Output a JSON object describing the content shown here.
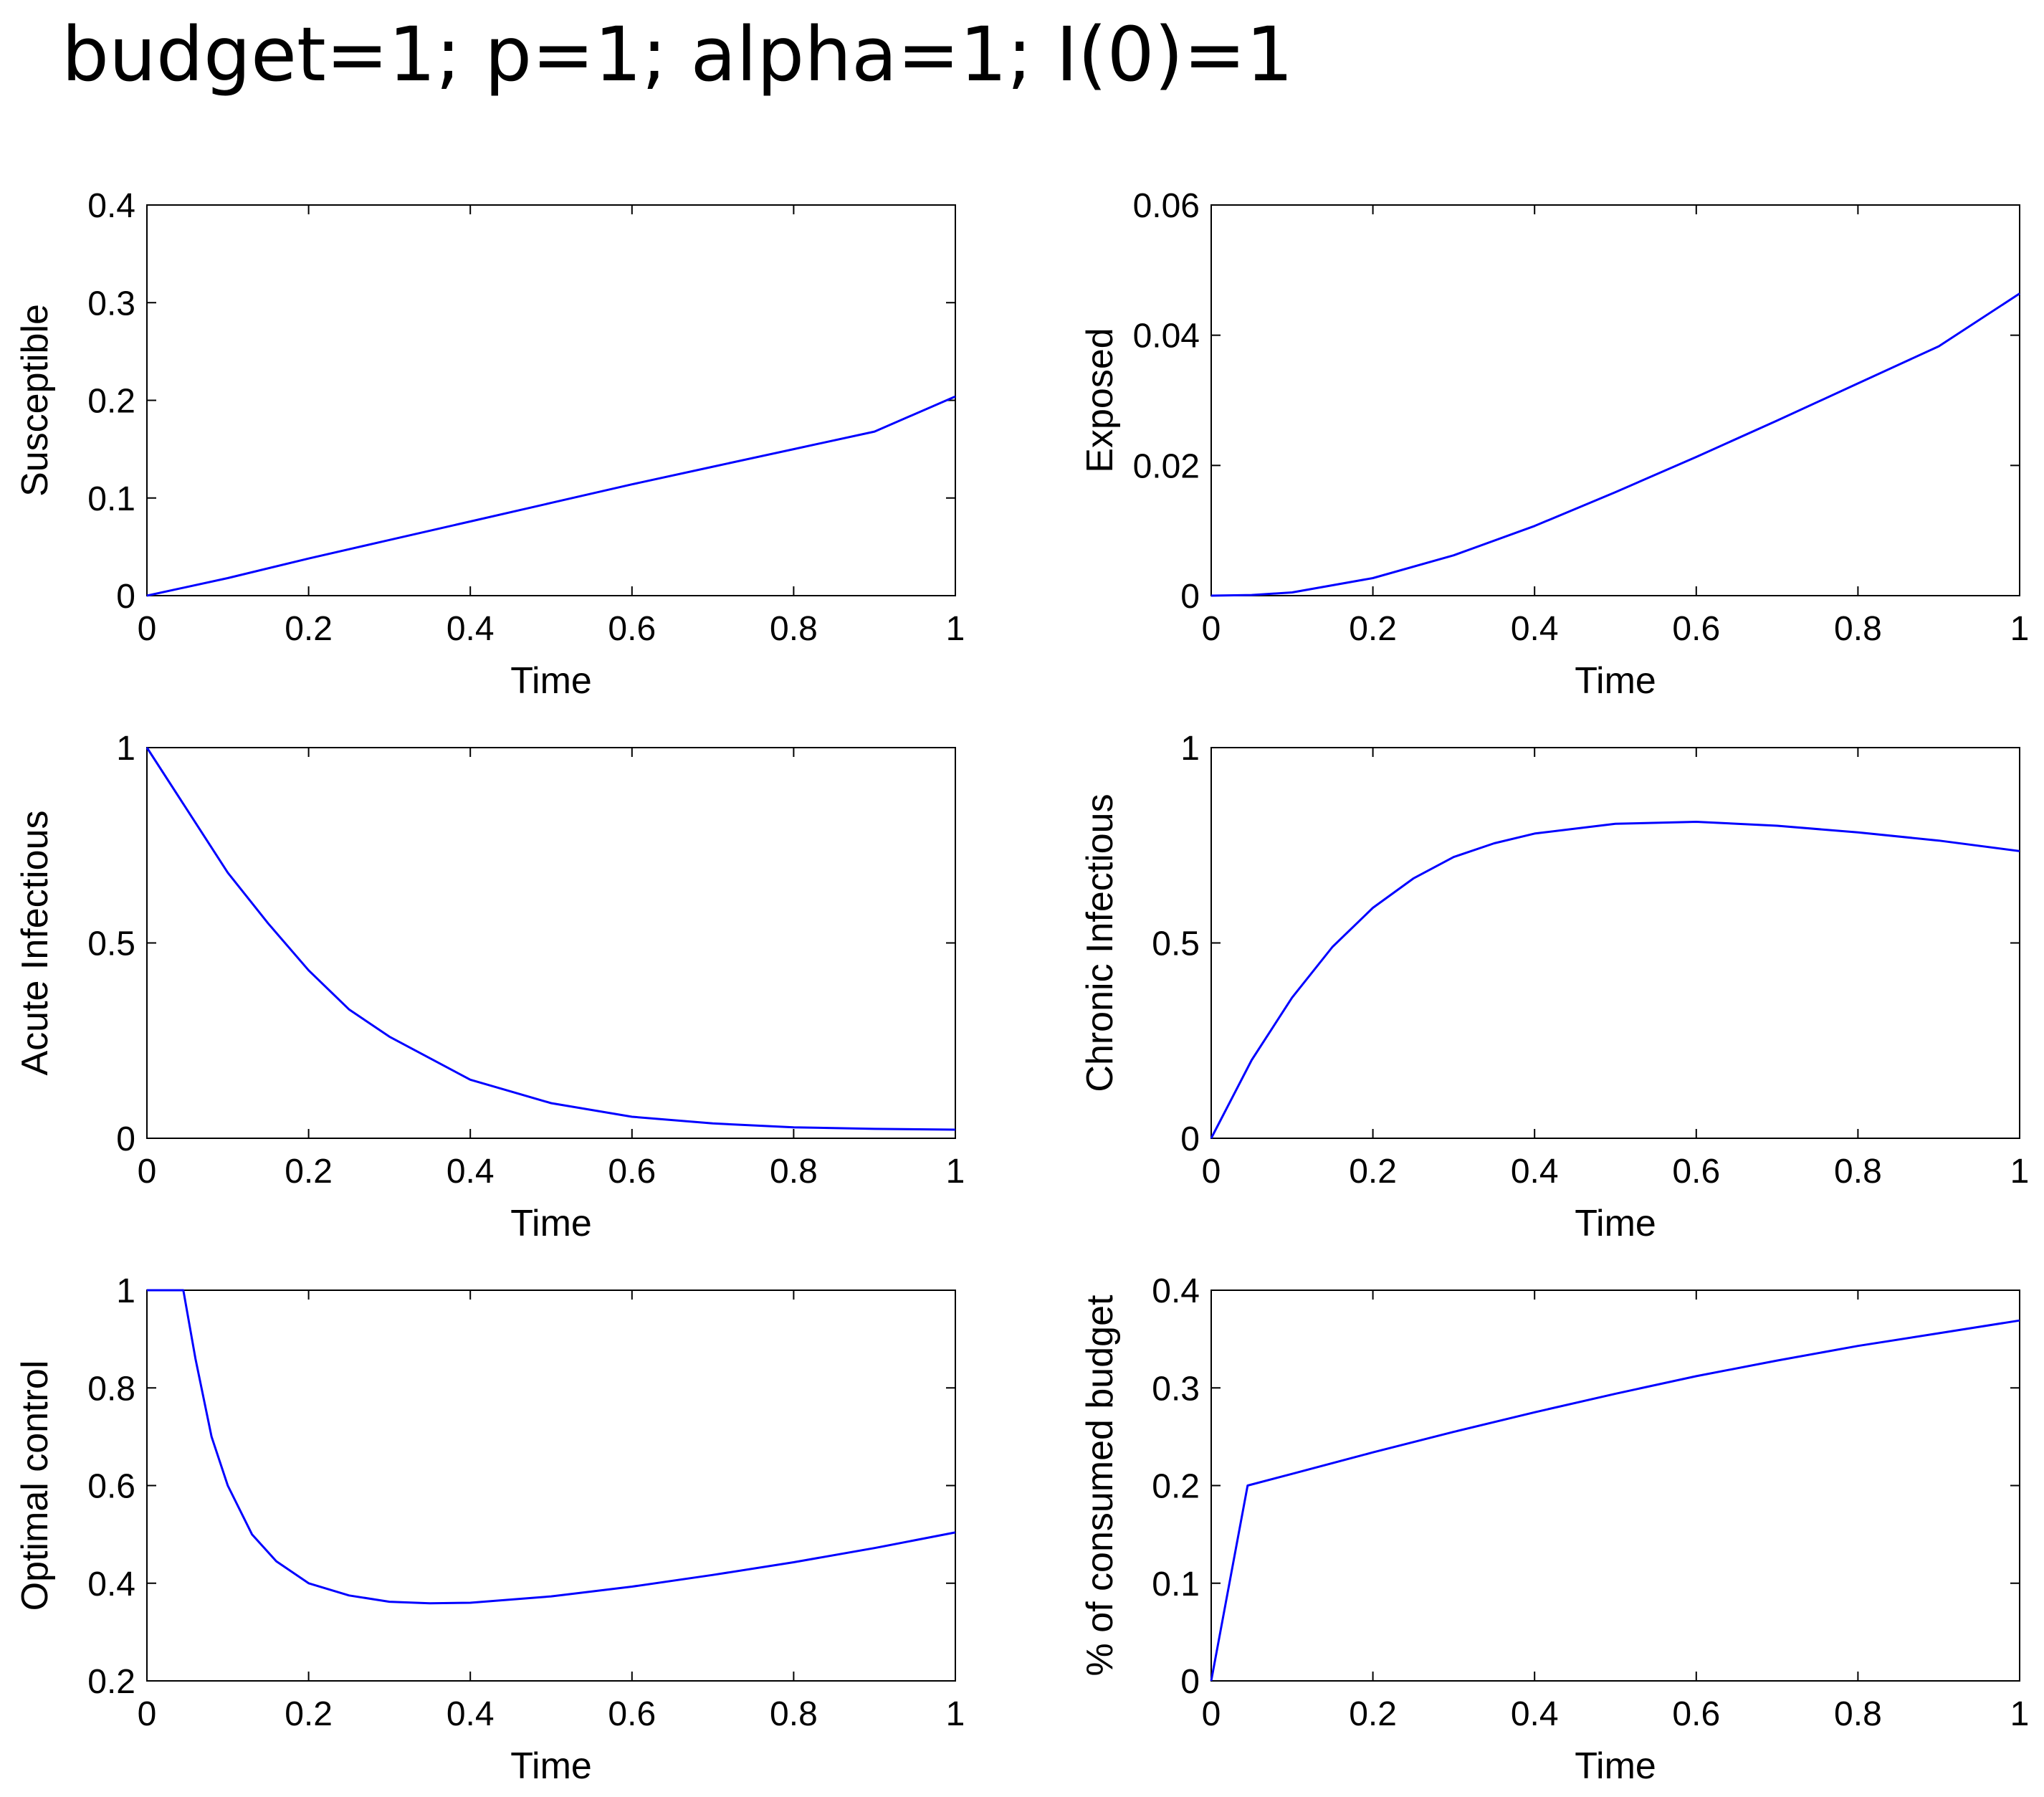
{
  "figure": {
    "title": "budget=1; p=1; alpha=1; I(0)=1",
    "line_color": "#0000ff"
  },
  "chart_data": [
    {
      "type": "line",
      "xlabel": "Time",
      "ylabel": "Susceptible",
      "xlim": [
        0,
        1
      ],
      "ylim": [
        0,
        0.4
      ],
      "xticks": [
        "0",
        "0.2",
        "0.4",
        "0.6",
        "0.8",
        "1"
      ],
      "yticks": [
        "0",
        "0.1",
        "0.2",
        "0.3",
        "0.4"
      ],
      "x": [
        0,
        0.1,
        0.2,
        0.3,
        0.4,
        0.5,
        0.6,
        0.7,
        0.8,
        0.9,
        1.0
      ],
      "y": [
        0,
        0.018,
        0.038,
        0.057,
        0.076,
        0.095,
        0.114,
        0.132,
        0.15,
        0.168,
        0.204
      ]
    },
    {
      "type": "line",
      "xlabel": "Time",
      "ylabel": "Exposed",
      "xlim": [
        0,
        1
      ],
      "ylim": [
        0,
        0.06
      ],
      "xticks": [
        "0",
        "0.2",
        "0.4",
        "0.6",
        "0.8",
        "1"
      ],
      "yticks": [
        "0",
        "0.02",
        "0.04",
        "0.06"
      ],
      "x": [
        0,
        0.05,
        0.1,
        0.2,
        0.3,
        0.4,
        0.5,
        0.6,
        0.7,
        0.8,
        0.9,
        1.0
      ],
      "y": [
        0,
        0.0001,
        0.0005,
        0.0027,
        0.0062,
        0.0107,
        0.0159,
        0.0213,
        0.0269,
        0.0326,
        0.0383,
        0.0464
      ]
    },
    {
      "type": "line",
      "xlabel": "Time",
      "ylabel": "Acute Infectious",
      "xlim": [
        0,
        1
      ],
      "ylim": [
        0,
        1
      ],
      "xticks": [
        "0",
        "0.2",
        "0.4",
        "0.6",
        "0.8",
        "1"
      ],
      "yticks": [
        "0",
        "0.5",
        "1"
      ],
      "x": [
        0,
        0.05,
        0.1,
        0.15,
        0.2,
        0.25,
        0.3,
        0.4,
        0.5,
        0.6,
        0.7,
        0.8,
        0.9,
        1.0
      ],
      "y": [
        1.0,
        0.84,
        0.68,
        0.55,
        0.43,
        0.33,
        0.26,
        0.15,
        0.09,
        0.055,
        0.038,
        0.028,
        0.024,
        0.022
      ]
    },
    {
      "type": "line",
      "xlabel": "Time",
      "ylabel": "Chronic Infectious",
      "xlim": [
        0,
        1
      ],
      "ylim": [
        0,
        1
      ],
      "xticks": [
        "0",
        "0.2",
        "0.4",
        "0.6",
        "0.8",
        "1"
      ],
      "yticks": [
        "0",
        "0.5",
        "1"
      ],
      "x": [
        0,
        0.05,
        0.1,
        0.15,
        0.2,
        0.25,
        0.3,
        0.35,
        0.4,
        0.5,
        0.6,
        0.7,
        0.8,
        0.9,
        1.0
      ],
      "y": [
        0,
        0.2,
        0.36,
        0.49,
        0.59,
        0.665,
        0.72,
        0.755,
        0.78,
        0.805,
        0.81,
        0.8,
        0.783,
        0.762,
        0.735
      ]
    },
    {
      "type": "line",
      "xlabel": "Time",
      "ylabel": "Optimal control",
      "xlim": [
        0,
        1
      ],
      "ylim": [
        0.2,
        1
      ],
      "xticks": [
        "0",
        "0.2",
        "0.4",
        "0.6",
        "0.8",
        "1"
      ],
      "yticks": [
        "0.2",
        "0.4",
        "0.6",
        "0.8",
        "1"
      ],
      "x": [
        0,
        0.045,
        0.06,
        0.08,
        0.1,
        0.13,
        0.16,
        0.2,
        0.25,
        0.3,
        0.35,
        0.4,
        0.5,
        0.6,
        0.7,
        0.8,
        0.9,
        1.0
      ],
      "y": [
        1.0,
        1.0,
        0.86,
        0.7,
        0.6,
        0.5,
        0.445,
        0.4,
        0.375,
        0.362,
        0.359,
        0.36,
        0.373,
        0.393,
        0.417,
        0.443,
        0.472,
        0.504
      ]
    },
    {
      "type": "line",
      "xlabel": "Time",
      "ylabel": "% of consumed budget",
      "xlim": [
        0,
        1
      ],
      "ylim": [
        0,
        0.4
      ],
      "xticks": [
        "0",
        "0.2",
        "0.4",
        "0.6",
        "0.8",
        "1"
      ],
      "yticks": [
        "0",
        "0.1",
        "0.2",
        "0.3",
        "0.4"
      ],
      "x": [
        0,
        0.045,
        0.1,
        0.2,
        0.3,
        0.4,
        0.5,
        0.6,
        0.7,
        0.8,
        0.9,
        1.0
      ],
      "y": [
        0,
        0.2,
        0.212,
        0.234,
        0.255,
        0.275,
        0.294,
        0.312,
        0.328,
        0.343,
        0.356,
        0.369
      ]
    }
  ]
}
